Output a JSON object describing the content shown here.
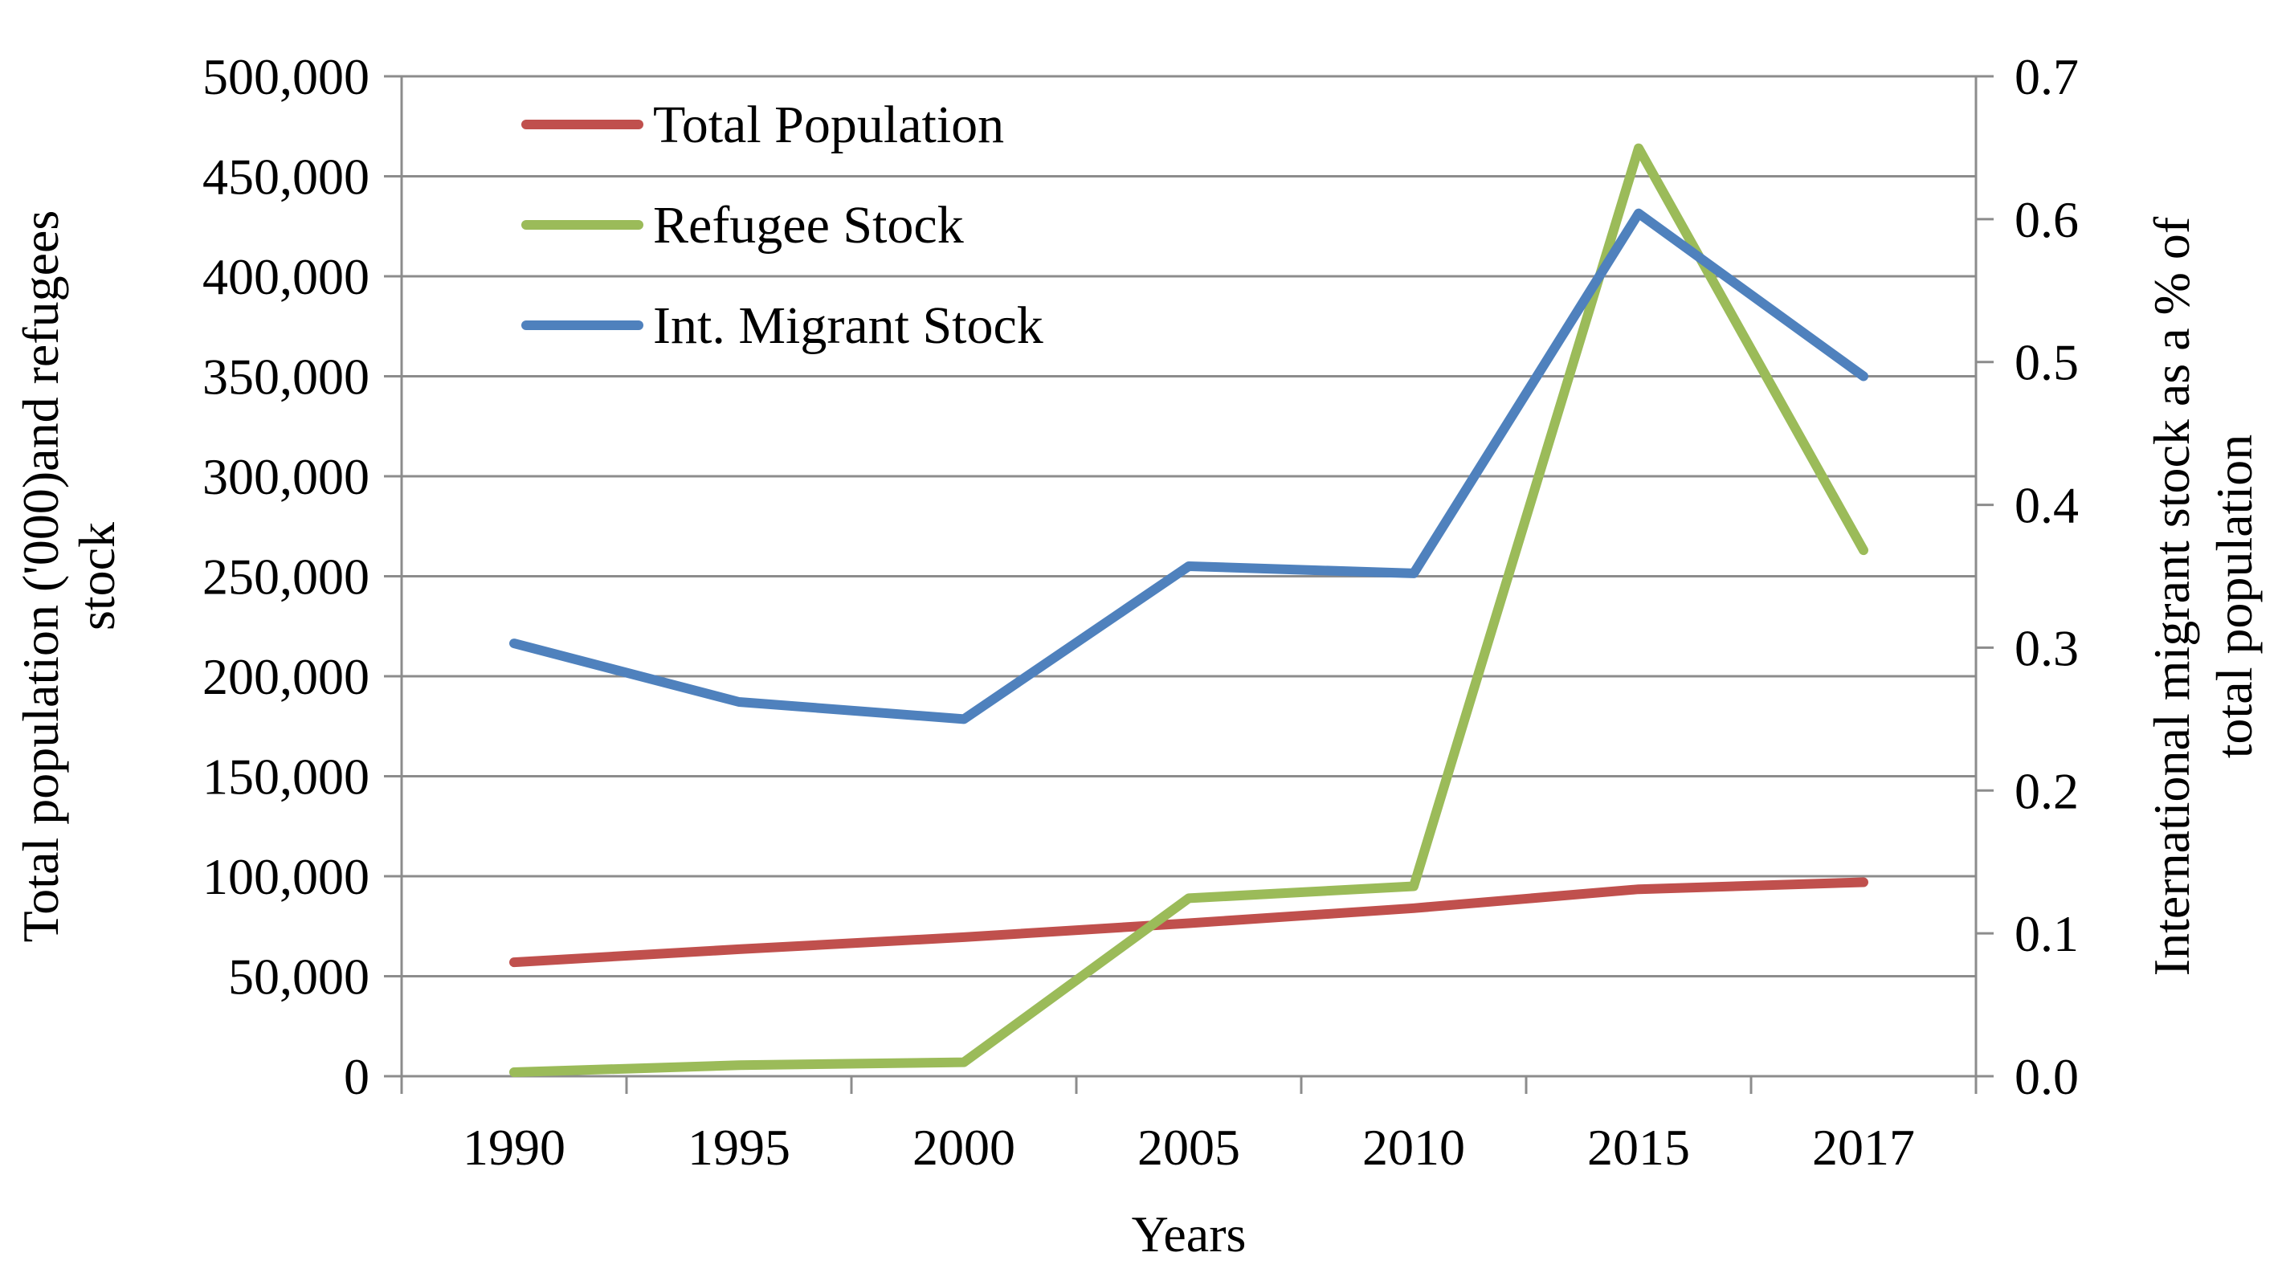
{
  "chart_data": {
    "type": "line",
    "title": "",
    "categories": [
      "1990",
      "1995",
      "2000",
      "2005",
      "2010",
      "2015",
      "2017"
    ],
    "xlabel": "Years",
    "ylabel_left": [
      "Total  population ('000)and refugees",
      "stock"
    ],
    "ylabel_right": [
      "International  migrant stock as a % of",
      "total population"
    ],
    "y_left": {
      "range": [
        0,
        500000
      ],
      "ticks": [
        0,
        50000,
        100000,
        150000,
        200000,
        250000,
        300000,
        350000,
        400000,
        450000,
        500000
      ],
      "tick_labels": [
        "0",
        "50,000",
        "100,000",
        "150,000",
        "200,000",
        "250,000",
        "300,000",
        "350,000",
        "400,000",
        "450,000",
        "500,000"
      ]
    },
    "y_right": {
      "range": [
        0,
        0.7
      ],
      "ticks": [
        0,
        0.1,
        0.2,
        0.3,
        0.4,
        0.5,
        0.6,
        0.7
      ],
      "tick_labels": [
        "0.0",
        "0.1",
        "0.2",
        "0.3",
        "0.4",
        "0.5",
        "0.6",
        "0.7"
      ]
    },
    "grid": true,
    "legend_position": "top-left",
    "series": [
      {
        "name": "Total Population",
        "axis": "left",
        "color": "#C0504D",
        "values": [
          57000,
          63500,
          69500,
          76500,
          84000,
          93500,
          97000
        ]
      },
      {
        "name": "Refugee Stock",
        "axis": "left",
        "color": "#9BBB59",
        "values": [
          2000,
          5500,
          7000,
          89000,
          95000,
          464000,
          263000
        ]
      },
      {
        "name": "Int. Migrant Stock",
        "axis": "right",
        "color": "#4F81BD",
        "values": [
          0.303,
          0.262,
          0.25,
          0.357,
          0.352,
          0.604,
          0.49
        ]
      }
    ]
  }
}
